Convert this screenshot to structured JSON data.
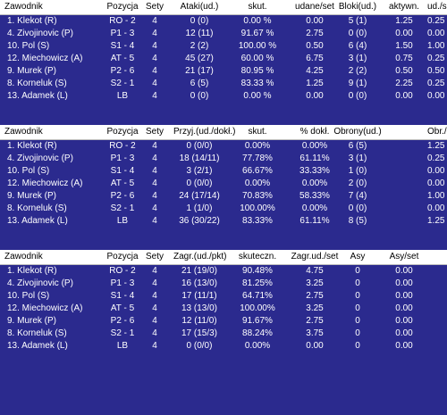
{
  "tables": [
    {
      "headers": [
        "Zawodnik",
        "Pozycja",
        "Sety",
        "Ataki(ud.)",
        "skut.",
        "udane/set",
        "Bloki(ud.)",
        "aktywn.",
        "ud./s"
      ],
      "rows": [
        [
          "1. Klekot (R)",
          "RO - 2",
          "4",
          "0 (0)",
          "0.00 %",
          "0.00",
          "5 (1)",
          "1.25",
          "0.25"
        ],
        [
          "4. Zivojinovic (P)",
          "P1 - 3",
          "4",
          "12 (11)",
          "91.67 %",
          "2.75",
          "0 (0)",
          "0.00",
          "0.00"
        ],
        [
          "10. Pol (S)",
          "S1 - 4",
          "4",
          "2 (2)",
          "100.00 %",
          "0.50",
          "6 (4)",
          "1.50",
          "1.00"
        ],
        [
          "12. Miechowicz (A)",
          "AT - 5",
          "4",
          "45 (27)",
          "60.00 %",
          "6.75",
          "3 (1)",
          "0.75",
          "0.25"
        ],
        [
          "9. Murek (P)",
          "P2 - 6",
          "4",
          "21 (17)",
          "80.95 %",
          "4.25",
          "2 (2)",
          "0.50",
          "0.50"
        ],
        [
          "8. Korneluk (S)",
          "S2 - 1",
          "4",
          "6 (5)",
          "83.33 %",
          "1.25",
          "9 (1)",
          "2.25",
          "0.25"
        ],
        [
          "13. Adamek (L)",
          "LB",
          "4",
          "0 (0)",
          "0.00 %",
          "0.00",
          "0 (0)",
          "0.00",
          "0.00"
        ]
      ]
    },
    {
      "headers": [
        "Zawodnik",
        "Pozycja",
        "Sety",
        "Przyj.(ud./dokł.)",
        "skut.",
        "% dokł.",
        "Obrony(ud.)",
        "Obr./s"
      ],
      "rows": [
        [
          "1. Klekot (R)",
          "RO - 2",
          "4",
          "0 (0/0)",
          "0.00%",
          "0.00%",
          "6 (5)",
          "1.25"
        ],
        [
          "4. Zivojinovic (P)",
          "P1 - 3",
          "4",
          "18 (14/11)",
          "77.78%",
          "61.11%",
          "3 (1)",
          "0.25"
        ],
        [
          "10. Pol (S)",
          "S1 - 4",
          "4",
          "3 (2/1)",
          "66.67%",
          "33.33%",
          "1 (0)",
          "0.00"
        ],
        [
          "12. Miechowicz (A)",
          "AT - 5",
          "4",
          "0 (0/0)",
          "0.00%",
          "0.00%",
          "2 (0)",
          "0.00"
        ],
        [
          "9. Murek (P)",
          "P2 - 6",
          "4",
          "24 (17/14)",
          "70.83%",
          "58.33%",
          "7 (4)",
          "1.00"
        ],
        [
          "8. Korneluk (S)",
          "S2 - 1",
          "4",
          "1 (1/0)",
          "100.00%",
          "0.00%",
          "0 (0)",
          "0.00"
        ],
        [
          "13. Adamek (L)",
          "LB",
          "4",
          "36 (30/22)",
          "83.33%",
          "61.11%",
          "8 (5)",
          "1.25"
        ]
      ]
    },
    {
      "headers": [
        "Zawodnik",
        "Pozycja",
        "Sety",
        "Zagr.(ud./pkt)",
        "skuteczn.",
        "Zagr.ud./set",
        "Asy",
        "Asy/set"
      ],
      "rows": [
        [
          "1. Klekot (R)",
          "RO - 2",
          "4",
          "21 (19/0)",
          "90.48%",
          "4.75",
          "0",
          "0.00"
        ],
        [
          "4. Zivojinovic (P)",
          "P1 - 3",
          "4",
          "16 (13/0)",
          "81.25%",
          "3.25",
          "0",
          "0.00"
        ],
        [
          "10. Pol (S)",
          "S1 - 4",
          "4",
          "17 (11/1)",
          "64.71%",
          "2.75",
          "0",
          "0.00"
        ],
        [
          "12. Miechowicz (A)",
          "AT - 5",
          "4",
          "13 (13/0)",
          "100.00%",
          "3.25",
          "0",
          "0.00"
        ],
        [
          "9. Murek (P)",
          "P2 - 6",
          "4",
          "12 (11/0)",
          "91.67%",
          "2.75",
          "0",
          "0.00"
        ],
        [
          "8. Korneluk (S)",
          "S2 - 1",
          "4",
          "17 (15/3)",
          "88.24%",
          "3.75",
          "0",
          "0.00"
        ],
        [
          "13. Adamek (L)",
          "LB",
          "4",
          "0 (0/0)",
          "0.00%",
          "0.00",
          "0",
          "0.00"
        ]
      ]
    }
  ]
}
